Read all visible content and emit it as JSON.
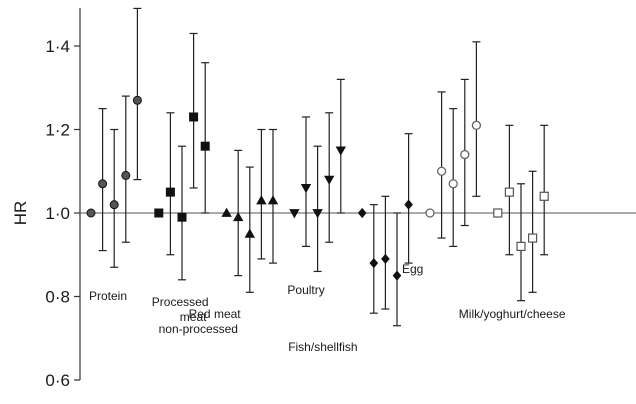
{
  "chart_data": {
    "type": "scatter",
    "subtype": "forest-plot",
    "ylabel": "HR",
    "ylim": [
      0.6,
      1.5
    ],
    "yticks": [
      {
        "value": 0.6,
        "label": "0·6"
      },
      {
        "value": 0.8,
        "label": "0·8"
      },
      {
        "value": 1.0,
        "label": "1·0"
      },
      {
        "value": 1.2,
        "label": "1·2"
      },
      {
        "value": 1.4,
        "label": "1·4"
      }
    ],
    "reference_line": 1.0,
    "groups": [
      {
        "label_lines": [
          "Protein"
        ],
        "marker": "circle",
        "fill": "#555555",
        "points": [
          {
            "hr": 1.0,
            "lower": null,
            "upper": null
          },
          {
            "hr": 1.07,
            "lower": 0.91,
            "upper": 1.25
          },
          {
            "hr": 1.02,
            "lower": 0.87,
            "upper": 1.2
          },
          {
            "hr": 1.09,
            "lower": 0.93,
            "upper": 1.28
          },
          {
            "hr": 1.27,
            "lower": 1.08,
            "upper": 1.49
          }
        ]
      },
      {
        "label_lines": [
          "Processed",
          "meat"
        ],
        "marker": "square",
        "fill": "#111111",
        "points": [
          {
            "hr": 1.0,
            "lower": null,
            "upper": null
          },
          {
            "hr": 1.05,
            "lower": 0.9,
            "upper": 1.24
          },
          {
            "hr": 0.99,
            "lower": 0.84,
            "upper": 1.16
          },
          {
            "hr": 1.23,
            "lower": 1.06,
            "upper": 1.43
          },
          {
            "hr": 1.16,
            "lower": 1.0,
            "upper": 1.36
          }
        ]
      },
      {
        "label_lines": [
          "Red meat",
          "non-processed"
        ],
        "marker": "triangle-up",
        "fill": "#111111",
        "points": [
          {
            "hr": 1.0,
            "lower": null,
            "upper": null
          },
          {
            "hr": 0.99,
            "lower": 0.85,
            "upper": 1.15
          },
          {
            "hr": 0.95,
            "lower": 0.81,
            "upper": 1.11
          },
          {
            "hr": 1.03,
            "lower": 0.89,
            "upper": 1.2
          },
          {
            "hr": 1.03,
            "lower": 0.88,
            "upper": 1.2
          }
        ]
      },
      {
        "label_lines": [
          "Poultry"
        ],
        "marker": "triangle-down",
        "fill": "#111111",
        "points": [
          {
            "hr": 1.0,
            "lower": null,
            "upper": null
          },
          {
            "hr": 1.06,
            "lower": 0.92,
            "upper": 1.23
          },
          {
            "hr": 1.0,
            "lower": 0.86,
            "upper": 1.16
          },
          {
            "hr": 1.08,
            "lower": 0.93,
            "upper": 1.24
          },
          {
            "hr": 1.15,
            "lower": 1.0,
            "upper": 1.32
          }
        ]
      },
      {
        "label_lines": [
          "Fish/shellfish"
        ],
        "marker": "diamond",
        "fill": "#111111",
        "points": [
          {
            "hr": 1.0,
            "lower": null,
            "upper": null
          },
          {
            "hr": 0.88,
            "lower": 0.76,
            "upper": 1.02
          },
          {
            "hr": 0.89,
            "lower": 0.77,
            "upper": 1.04
          },
          {
            "hr": 0.85,
            "lower": 0.73,
            "upper": 1.0
          },
          {
            "hr": 1.02,
            "lower": 0.88,
            "upper": 1.19
          }
        ]
      },
      {
        "label_lines": [
          "Egg"
        ],
        "marker": "circle-open",
        "fill": "#ffffff",
        "points": [
          {
            "hr": 1.0,
            "lower": null,
            "upper": null
          },
          {
            "hr": 1.1,
            "lower": 0.94,
            "upper": 1.29
          },
          {
            "hr": 1.07,
            "lower": 0.92,
            "upper": 1.25
          },
          {
            "hr": 1.14,
            "lower": 0.97,
            "upper": 1.32
          },
          {
            "hr": 1.21,
            "lower": 1.04,
            "upper": 1.41
          }
        ]
      },
      {
        "label_lines": [
          "Milk/yoghurt/cheese"
        ],
        "marker": "square-open",
        "fill": "#ffffff",
        "points": [
          {
            "hr": 1.0,
            "lower": null,
            "upper": null
          },
          {
            "hr": 1.05,
            "lower": 0.9,
            "upper": 1.21
          },
          {
            "hr": 0.92,
            "lower": 0.79,
            "upper": 1.07
          },
          {
            "hr": 0.94,
            "lower": 0.81,
            "upper": 1.1
          },
          {
            "hr": 1.04,
            "lower": 0.9,
            "upper": 1.21
          }
        ]
      }
    ],
    "colors": {
      "axis": "#333333",
      "errorbar": "#222222",
      "reference": "#555555"
    }
  }
}
